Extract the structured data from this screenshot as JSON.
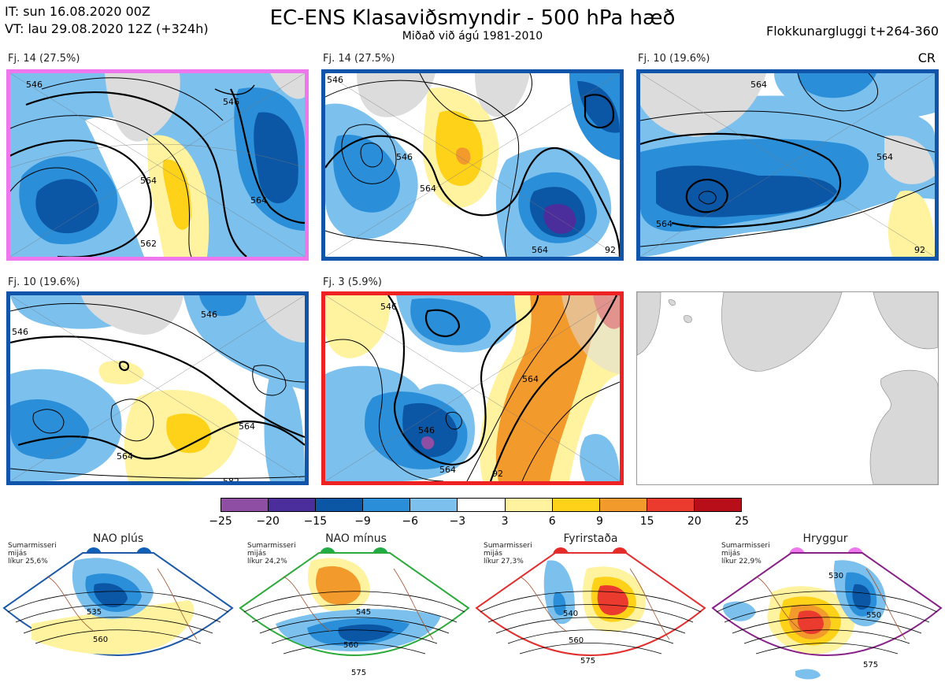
{
  "header": {
    "it_line": "IT: sun 16.08.2020 00Z",
    "vt_line": "VT: lau 29.08.2020 12Z  (+324h)",
    "title": "EC-ENS Klasaviðsmyndir - 500 hPa hæð",
    "subtitle": "Miðað við ágú 1981-2010",
    "window": "Flokkunargluggi t+264-360",
    "cr": "CR"
  },
  "panels": [
    {
      "label": "Fj. 14 (27.5%)",
      "border": "#ee77ee",
      "contours": [
        "546",
        "546",
        "564",
        "564",
        "562"
      ]
    },
    {
      "label": "Fj. 14 (27.5%)",
      "border": "#1155aa",
      "contours": [
        "546",
        "546",
        "564",
        "564",
        "92"
      ]
    },
    {
      "label": "Fj. 10 (19.6%)",
      "border": "#1155aa",
      "contours": [
        "564",
        "564",
        "564",
        "92"
      ]
    },
    {
      "label": "Fj. 10 (19.6%)",
      "border": "#1155aa",
      "contours": [
        "546",
        "546",
        "564",
        "564",
        "582"
      ]
    },
    {
      "label": "Fj. 3 (5.9%)",
      "border": "#ee2222",
      "contours": [
        "546",
        "546",
        "564",
        "564",
        "92"
      ]
    },
    {
      "label": "",
      "border": "#999999",
      "contours": []
    }
  ],
  "colorbar": {
    "ticks": [
      "−25",
      "−20",
      "−15",
      "−9",
      "−6",
      "−3",
      "3",
      "6",
      "9",
      "15",
      "20",
      "25"
    ],
    "colors": [
      "#8e4ea3",
      "#4b2e9c",
      "#0b56a5",
      "#2a8fd8",
      "#7cc0ee",
      "#ffffff",
      "#fff3a0",
      "#ffd21a",
      "#f39a2c",
      "#ea3b2e",
      "#b80e1a"
    ]
  },
  "regimes": [
    {
      "title": "NAO plús",
      "dot_color": "#1060b8",
      "border": "#1d5aa8",
      "note": [
        "Sumarmisseri",
        "mijás",
        "líkur 25,6%"
      ],
      "contours": [
        "535",
        "560"
      ]
    },
    {
      "title": "NAO mínus",
      "dot_color": "#22aa44",
      "border": "#2daa3c",
      "note": [
        "Sumarmisseri",
        "mijás",
        "líkur 24,2%"
      ],
      "contours": [
        "545",
        "560",
        "575"
      ]
    },
    {
      "title": "Fyrirstaða",
      "dot_color": "#e52a2a",
      "border": "#e23030",
      "note": [
        "Sumarmisseri",
        "mijás",
        "líkur 27,3%"
      ],
      "contours": [
        "540",
        "560",
        "575"
      ]
    },
    {
      "title": "Hryggur",
      "dot_color": "#ee77ee",
      "border": "#882288",
      "note": [
        "Sumarmisseri",
        "mijás",
        "líkur 22,9%"
      ],
      "contours": [
        "530",
        "550",
        "575"
      ]
    }
  ]
}
